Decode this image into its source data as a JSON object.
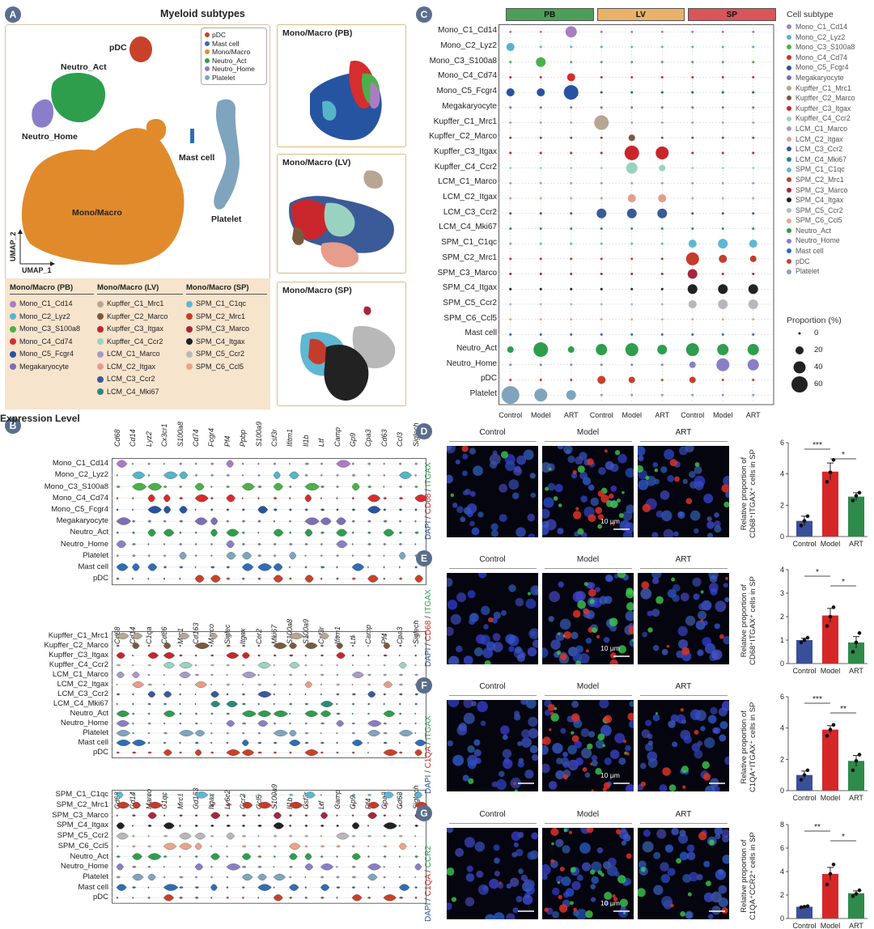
{
  "panels": {
    "A": "A",
    "B": "B",
    "C": "C",
    "D": "D",
    "E": "E",
    "F": "F",
    "G": "G"
  },
  "panelA": {
    "title": "Myeloid subtypes",
    "axis_x": "UMAP_1",
    "axis_y": "UMAP_2",
    "cluster_labels": [
      "pDC",
      "Neutro_Act",
      "Neutro_Home",
      "Mast cell",
      "Mono/Macro",
      "Platelet"
    ],
    "legend": [
      {
        "label": "pDC",
        "color": "#c8412a"
      },
      {
        "label": "Mast cell",
        "color": "#2f6db4"
      },
      {
        "label": "Mono/Macro",
        "color": "#e08a2c"
      },
      {
        "label": "Neutro_Act",
        "color": "#2e9e4d"
      },
      {
        "label": "Neutro_Home",
        "color": "#8b7ec8"
      },
      {
        "label": "Platelet",
        "color": "#7fa4bd"
      }
    ],
    "sub_umaps": [
      "Mono/Macro (PB)",
      "Mono/Macro (LV)",
      "Mono/Macro (SP)"
    ],
    "subtype_columns": [
      {
        "header": "Mono/Macro (PB)",
        "items": [
          {
            "label": "Mono_C1_Cd14",
            "color": "#a97dc2"
          },
          {
            "label": "Mono_C2_Lyz2",
            "color": "#56b4c9"
          },
          {
            "label": "Mono_C3_S100a8",
            "color": "#4bb04a"
          },
          {
            "label": "Mono_C4_Cd74",
            "color": "#d62d2d"
          },
          {
            "label": "Mono_C5_Fcgr4",
            "color": "#2754a0"
          },
          {
            "label": "Megakaryocyte",
            "color": "#7e6eb5"
          }
        ]
      },
      {
        "header": "Mono/Macro (LV)",
        "items": [
          {
            "label": "Kupffer_C1_Mrc1",
            "color": "#b8a593"
          },
          {
            "label": "Kupffer_C2_Marco",
            "color": "#7a5a3d"
          },
          {
            "label": "Kupffer_C3_Itgax",
            "color": "#c8262b"
          },
          {
            "label": "Kupffer_C4_Ccr2",
            "color": "#9ad2c2"
          },
          {
            "label": "LCM_C1_Marco",
            "color": "#a79bc6"
          },
          {
            "label": "LCM_C2_Itgax",
            "color": "#e79c8c"
          },
          {
            "label": "LCM_C3_Ccr2",
            "color": "#3a5a98"
          },
          {
            "label": "LCM_C4_Mki67",
            "color": "#2a8a7a"
          }
        ]
      },
      {
        "header": "Mono/Macro (SP)",
        "items": [
          {
            "label": "SPM_C1_C1qc",
            "color": "#5fb7d2"
          },
          {
            "label": "SPM_C2_Mrc1",
            "color": "#c43c2c"
          },
          {
            "label": "SPM_C3_Marco",
            "color": "#a8263a"
          },
          {
            "label": "SPM_C4_Itgax",
            "color": "#222222"
          },
          {
            "label": "SPM_C5_Ccr2",
            "color": "#b8b8b8"
          },
          {
            "label": "SPM_C6_Ccl5",
            "color": "#e8a58a"
          }
        ]
      }
    ]
  },
  "panelB": {
    "xlabel": "Expression Level",
    "blocks": [
      {
        "genes": [
          "Cd68",
          "Cd14",
          "Lyz2",
          "Cx3cr1",
          "S100a8",
          "Cd74",
          "Fcgr4",
          "Pf4",
          "Ppbp",
          "S100a9",
          "Csf3r",
          "Ifitm1",
          "Il1b",
          "Ltf",
          "Camp",
          "Gp9",
          "Cpa3",
          "Cd63",
          "Ccl3",
          "Siglech"
        ],
        "rows": [
          "Mono_C1_Cd14",
          "Mono_C2_Lyz2",
          "Mono_C3_S100a8",
          "Mono_C4_Cd74",
          "Mono_C5_Fcgr4",
          "Megakaryocyte",
          "Neutro_Act",
          "Neutro_Home",
          "Platelet",
          "Mast cell",
          "pDC"
        ],
        "colors": [
          "#a97dc2",
          "#56b4c9",
          "#4bb04a",
          "#d62d2d",
          "#2754a0",
          "#7e6eb5",
          "#2e9e4d",
          "#8b7ec8",
          "#7fa4bd",
          "#2f6db4",
          "#c8412a"
        ]
      },
      {
        "genes": [
          "Cd68",
          "Cd14",
          "C1qa",
          "Cd86",
          "Mrc1",
          "Cd163",
          "Marco",
          "Siglec",
          "Itgax",
          "Ccr2",
          "Mki67",
          "S100a8",
          "S100a9",
          "Csf3r",
          "Ifitm1",
          "Ltf",
          "Camp",
          "Pf4",
          "Cpa3",
          "Siglech"
        ],
        "rows": [
          "Kupffer_C1_Mrc1",
          "Kupffer_C2_Marco",
          "Kupffer_C3_Itgax",
          "Kupffer_C4_Ccr2",
          "LCM_C1_Marco",
          "LCM_C2_Itgax",
          "LCM_C3_Ccr2",
          "LCM_C4_Mki67",
          "Neutro_Act",
          "Neutro_Home",
          "Platelet",
          "Mast cell",
          "pDC"
        ],
        "colors": [
          "#b8a593",
          "#7a5a3d",
          "#c8262b",
          "#9ad2c2",
          "#a79bc6",
          "#e79c8c",
          "#3a5a98",
          "#2a8a7a",
          "#2e9e4d",
          "#8b7ec8",
          "#7fa4bd",
          "#2f6db4",
          "#c8412a"
        ]
      },
      {
        "genes": [
          "Cd68",
          "Cd14",
          "Marco",
          "C1qc",
          "Mrc1",
          "Cd163",
          "Itgax",
          "Ly6c2",
          "Ccr2",
          "Ccl5",
          "S100a9",
          "Il1b",
          "Csf3r",
          "Ltf",
          "Camp",
          "Gp9",
          "Pf4",
          "Cpa3",
          "Cd63",
          "Siglech"
        ],
        "rows": [
          "SPM_C1_C1qc",
          "SPM_C2_Mrc1",
          "SPM_C3_Marco",
          "SPM_C4_Itgax",
          "SPM_C5_Ccr2",
          "SPM_C6_Ccl5",
          "Neutro_Act",
          "Neutro_Home",
          "Platelet",
          "Mast cell",
          "pDC"
        ],
        "colors": [
          "#5fb7d2",
          "#c43c2c",
          "#a8263a",
          "#222222",
          "#b8b8b8",
          "#e8a58a",
          "#2e9e4d",
          "#8b7ec8",
          "#7fa4bd",
          "#2f6db4",
          "#c8412a"
        ]
      }
    ]
  },
  "panelC": {
    "groups": [
      {
        "label": "PB",
        "color": "#4c9f58"
      },
      {
        "label": "LV",
        "color": "#e9b26a"
      },
      {
        "label": "SP",
        "color": "#d9555a"
      }
    ],
    "conditions": [
      "Control",
      "Model",
      "ART",
      "Control",
      "Model",
      "ART",
      "Control",
      "Model",
      "ART"
    ],
    "rows": [
      "Mono_C1_Cd14",
      "Mono_C2_Lyz2",
      "Mono_C3_S100a8",
      "Mono_C4_Cd74",
      "Mono_C5_Fcgr4",
      "Megakaryocyte",
      "Kupffer_C1_Mrc1",
      "Kupffer_C2_Marco",
      "Kupffer_C3_Itgax",
      "Kupffer_C4_Ccr2",
      "LCM_C1_Marco",
      "LCM_C2_Itgax",
      "LCM_C3_Ccr2",
      "LCM_C4_Mki67",
      "SPM_C1_C1qc",
      "SPM_C2_Mrc1",
      "SPM_C3_Marco",
      "SPM_C4_Itgax",
      "SPM_C5_Ccr2",
      "SPM_C6_Ccl5",
      "Mast cell",
      "Neutro_Act",
      "Neutro_Home",
      "pDC",
      "Platelet"
    ],
    "row_colors": [
      "#a97dc2",
      "#56b4c9",
      "#4bb04a",
      "#d62d2d",
      "#2754a0",
      "#7e6eb5",
      "#b8a593",
      "#7a5a3d",
      "#c8262b",
      "#9ad2c2",
      "#a79bc6",
      "#e79c8c",
      "#3a5a98",
      "#2a8a7a",
      "#5fb7d2",
      "#c43c2c",
      "#a8263a",
      "#222222",
      "#b8b8b8",
      "#e8a58a",
      "#2f6db4",
      "#2e9e4d",
      "#8b7ec8",
      "#c8412a",
      "#7fa4bd"
    ],
    "legend_title": "Cell subtype",
    "legend_items": [
      "Mono_C1_Cd14",
      "Mono_C2_Lyz2",
      "Mono_C3_S100a8",
      "Mono_C4_Cd74",
      "Mono_C5_Fcgr4",
      "Megakaryocyte",
      "Kupffer_C1_Mrc1",
      "Kupffer_C2_Marco",
      "Kupffer_C3_Itgax",
      "Kupffer_C4_Ccr2",
      "LCM_C1_Marco",
      "LCM_C2_Itgax",
      "LCM_C3_Ccr2",
      "LCM_C4_Mki67",
      "SPM_C1_C1qc",
      "SPM_C2_Mrc1",
      "SPM_C3_Marco",
      "SPM_C4_Itgax",
      "SPM_C5_Ccr2",
      "SPM_C6_Ccl5",
      "Neutro_Act",
      "Neutro_Home",
      "Mast cell",
      "pDC",
      "Platelet"
    ],
    "legend_colors": [
      "#a97dc2",
      "#56b4c9",
      "#4bb04a",
      "#d62d2d",
      "#2754a0",
      "#7e6eb5",
      "#b8a593",
      "#7a5a3d",
      "#c8262b",
      "#9ad2c2",
      "#a79bc6",
      "#e79c8c",
      "#3a5a98",
      "#2a8a7a",
      "#5fb7d2",
      "#c43c2c",
      "#a8263a",
      "#222222",
      "#b8b8b8",
      "#e8a58a",
      "#2e9e4d",
      "#8b7ec8",
      "#2f6db4",
      "#c8412a",
      "#7fa4bd"
    ],
    "size_legend_title": "Proportion (%)",
    "size_legend_values": [
      "0",
      "20",
      "40",
      "60"
    ]
  },
  "if_panels": [
    {
      "id": "D",
      "stain_parts": [
        "DAPI",
        " / ",
        "CD68",
        " / ",
        "ITGAX"
      ],
      "stain_colors": [
        "#2b4ea0",
        "#333",
        "#c62828",
        "#333",
        "#2e9e4d"
      ],
      "ylabel_line1": "Relative proportion of",
      "ylabel_line2": "CD68⁺ITGAX⁺ cells in SP",
      "yticks": [
        "0",
        "2",
        "4",
        "6"
      ],
      "sig": [
        "***",
        "*"
      ]
    },
    {
      "id": "E",
      "stain_parts": [
        "DAPI",
        " / ",
        "CD68",
        " / ",
        "ITGAX"
      ],
      "stain_colors": [
        "#2b4ea0",
        "#333",
        "#c62828",
        "#333",
        "#2e9e4d"
      ],
      "ylabel_line1": "Relative proportion of",
      "ylabel_line2": "CD68⁺ITGAX⁺ cells in SP",
      "yticks": [
        "0",
        "1",
        "2",
        "3",
        "4"
      ],
      "sig": [
        "*",
        "*"
      ]
    },
    {
      "id": "F",
      "stain_parts": [
        "DAPI",
        " / ",
        "C1QA",
        " / ",
        "ITGAX"
      ],
      "stain_colors": [
        "#2b4ea0",
        "#333",
        "#c62828",
        "#333",
        "#2e9e4d"
      ],
      "ylabel_line1": "Relative proportion of",
      "ylabel_line2": "C1QA⁺ITGAX⁺ cells in SP",
      "yticks": [
        "0",
        "2",
        "4",
        "6"
      ],
      "sig": [
        "***",
        "**"
      ]
    },
    {
      "id": "G",
      "stain_parts": [
        "DAPI",
        " / ",
        "C1QA",
        " / ",
        "CCR2"
      ],
      "stain_colors": [
        "#2b4ea0",
        "#333",
        "#c62828",
        "#333",
        "#2e9e4d"
      ],
      "ylabel_line1": "Relative proportion of",
      "ylabel_line2": "C1QA⁺CCR2⁺ cells in SP",
      "yticks": [
        "0",
        "2",
        "4",
        "6",
        "8"
      ],
      "sig": [
        "**",
        "*"
      ]
    }
  ],
  "if_columns": [
    "Control",
    "Model",
    "ART"
  ],
  "scale_bar": "10 μm",
  "chart_data": [
    {
      "type": "bar",
      "panel": "D",
      "categories": [
        "Control",
        "Model",
        "ART"
      ],
      "values": [
        1.0,
        4.15,
        2.55
      ],
      "errors": [
        0.3,
        0.55,
        0.25
      ],
      "points": [
        [
          0.7,
          1.0,
          1.3
        ],
        [
          3.5,
          4.1,
          4.9
        ],
        [
          2.3,
          2.6,
          2.8
        ]
      ],
      "ylim": [
        0,
        6
      ],
      "colors": [
        "#3a4f9a",
        "#d62728",
        "#2e8b4a"
      ]
    },
    {
      "type": "bar",
      "panel": "E",
      "categories": [
        "Control",
        "Model",
        "ART"
      ],
      "values": [
        1.0,
        2.05,
        0.9
      ],
      "errors": [
        0.08,
        0.3,
        0.25
      ],
      "points": [
        [
          0.9,
          1.0,
          1.1
        ],
        [
          1.6,
          2.0,
          2.4
        ],
        [
          0.5,
          0.9,
          1.3
        ]
      ],
      "ylim": [
        0,
        4
      ],
      "colors": [
        "#3a4f9a",
        "#d62728",
        "#2e8b4a"
      ]
    },
    {
      "type": "bar",
      "panel": "F",
      "categories": [
        "Control",
        "Model",
        "ART"
      ],
      "values": [
        1.0,
        3.9,
        1.9
      ],
      "errors": [
        0.25,
        0.25,
        0.35
      ],
      "points": [
        [
          0.7,
          1.0,
          1.3
        ],
        [
          3.5,
          3.9,
          4.2
        ],
        [
          1.3,
          1.9,
          2.3
        ]
      ],
      "ylim": [
        0,
        6
      ],
      "colors": [
        "#3a4f9a",
        "#d62728",
        "#2e8b4a"
      ]
    },
    {
      "type": "bar",
      "panel": "G",
      "categories": [
        "Control",
        "Model",
        "ART"
      ],
      "values": [
        1.0,
        3.8,
        2.15
      ],
      "errors": [
        0.05,
        0.55,
        0.2
      ],
      "points": [
        [
          0.95,
          1.0,
          1.05
        ],
        [
          2.9,
          3.8,
          4.6
        ],
        [
          1.9,
          2.1,
          2.4
        ]
      ],
      "ylim": [
        0,
        8
      ],
      "colors": [
        "#3a4f9a",
        "#d62728",
        "#2e8b4a"
      ]
    }
  ]
}
